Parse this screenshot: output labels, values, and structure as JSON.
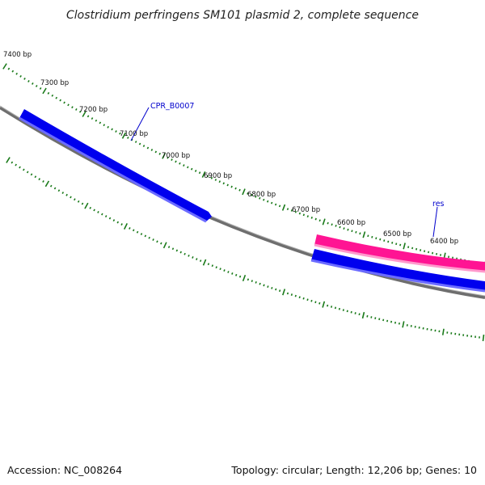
{
  "title": "Clostridium perfringens SM101 plasmid 2, complete sequence",
  "footer": {
    "accession": "Accession: NC_008264",
    "summary": "Topology: circular; Length: 12,206 bp; Genes: 10"
  },
  "colors": {
    "backbone": "#808080",
    "ticks": "#1a7a1a",
    "forward_gene": "#0000ee",
    "reverse_gene": "#0000ee",
    "feature_highlight": "#ff1493",
    "label_line": "#0000cc"
  },
  "tick_labels": [
    "7400 bp",
    "7300 bp",
    "7200 bp",
    "7100 bp",
    "7000 bp",
    "6900 bp",
    "6800 bp",
    "6700 bp",
    "6600 bp",
    "6500 bp",
    "6400 bp"
  ],
  "features": [
    {
      "name": "CPR_B0007",
      "strand": "forward",
      "color": "blue"
    },
    {
      "name": "res",
      "strand": "forward",
      "color": "pink"
    }
  ]
}
